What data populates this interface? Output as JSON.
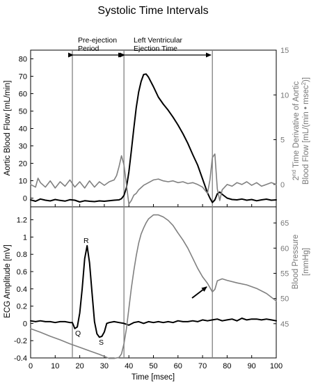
{
  "title": "Systolic Time Intervals",
  "chart_data": [
    {
      "type": "line",
      "panel": "top",
      "xlabel": "",
      "xlim": [
        0,
        100
      ],
      "ylabel": "Aortic Blood Flow [mL/min]",
      "ylim": [
        -5,
        85
      ],
      "yticks": [
        0,
        10,
        20,
        30,
        40,
        50,
        60,
        70,
        80
      ],
      "y2label_parts": [
        "2",
        "nd",
        " Time Derivative of Aortic",
        "Blood Flow [mL/(min • msec",
        "2",
        ")]"
      ],
      "y2lim": [
        -2.5,
        15
      ],
      "y2ticks": [
        0,
        5,
        10,
        15
      ],
      "color_primary": "#000000",
      "color_secondary": "#808080",
      "series": [
        {
          "axis": "left",
          "x": [
            0,
            2,
            4,
            6,
            8,
            10,
            12,
            14,
            16,
            18,
            20,
            22,
            24,
            26,
            28,
            30,
            32,
            34,
            36,
            37,
            38,
            39,
            40,
            41,
            42,
            43,
            44,
            45,
            46,
            47,
            48,
            50,
            52,
            54,
            56,
            58,
            60,
            62,
            64,
            66,
            68,
            70,
            72,
            73,
            74,
            75,
            76,
            77,
            78,
            80,
            82,
            84,
            86,
            88,
            90,
            92,
            94,
            96,
            98,
            100
          ],
          "y": [
            -1,
            -1.8,
            -0.5,
            -1.2,
            -1.6,
            -0.8,
            -1.3,
            -1.7,
            -0.9,
            -1.2,
            -2.2,
            -1.5,
            -1.8,
            -2,
            -1.6,
            -1.8,
            -1.5,
            -1.2,
            -1,
            -0.3,
            1.5,
            6,
            15,
            27,
            40,
            52,
            61,
            67,
            71,
            71.3,
            69.5,
            64,
            58,
            54,
            50.5,
            46.5,
            42,
            37,
            31.5,
            25,
            19,
            11,
            3,
            0,
            -2.5,
            -1,
            2.5,
            3.5,
            2.2,
            0,
            -0.8,
            -1,
            -0.5,
            -1.2,
            -0.8,
            -1.5,
            -1,
            -0.6,
            -1.2,
            -1
          ]
        },
        {
          "axis": "right",
          "x": [
            0,
            2,
            3,
            4,
            6,
            8,
            10,
            12,
            14,
            16,
            18,
            20,
            22,
            24,
            26,
            28,
            30,
            32,
            34,
            35,
            36,
            37,
            38,
            39,
            40,
            41,
            42,
            43,
            44,
            46,
            48,
            50,
            52,
            54,
            56,
            58,
            60,
            62,
            64,
            66,
            68,
            70,
            72,
            73,
            74,
            75,
            76,
            77,
            78,
            80,
            82,
            84,
            86,
            88,
            90,
            92,
            94,
            96,
            98,
            100
          ],
          "y": [
            0,
            -0.3,
            0.7,
            0.2,
            -0.3,
            0.4,
            -0.4,
            0.3,
            -0.2,
            0.5,
            -0.3,
            0.3,
            -0.4,
            0.4,
            -0.3,
            0.3,
            -0.1,
            0.3,
            0.5,
            1,
            2,
            3.2,
            2.2,
            0,
            -2.2,
            -1.8,
            -1.2,
            -1,
            -0.6,
            -0.1,
            0.2,
            0.5,
            0.6,
            0.4,
            0.3,
            0.4,
            0.2,
            0.3,
            0.1,
            0.2,
            0,
            -0.3,
            -1,
            0.5,
            3,
            3.4,
            -0.5,
            -1.8,
            -0.6,
            0,
            -0.2,
            0.2,
            0,
            0.3,
            -0.1,
            0.2,
            -0.2,
            0,
            0.2,
            0
          ]
        }
      ]
    },
    {
      "type": "line",
      "panel": "bottom",
      "xlabel": "Time [msec]",
      "xlim": [
        0,
        100
      ],
      "xticks": [
        0,
        10,
        20,
        30,
        40,
        50,
        60,
        70,
        80,
        90,
        100
      ],
      "ylabel": "ECG Amplitude [mV]",
      "ylim": [
        -0.4,
        1.35
      ],
      "yticks": [
        -0.4,
        -0.2,
        0,
        0.2,
        0.4,
        0.6,
        0.8,
        1,
        1.2
      ],
      "y2label_parts": [
        "Blood Pressure",
        "[mmHg]"
      ],
      "y2lim": [
        38.2,
        68.2
      ],
      "y2ticks": [
        45,
        50,
        55,
        60,
        65
      ],
      "series": [
        {
          "axis": "left",
          "x": [
            0,
            2,
            4,
            6,
            8,
            10,
            12,
            14,
            16,
            17,
            18,
            19,
            20,
            21,
            22,
            23,
            24,
            25,
            26,
            27,
            28,
            29,
            30,
            31,
            32,
            34,
            36,
            38,
            40,
            42,
            44,
            46,
            48,
            50,
            52,
            54,
            56,
            58,
            60,
            62,
            64,
            66,
            68,
            70,
            72,
            74,
            76,
            78,
            80,
            82,
            84,
            86,
            88,
            90,
            92,
            94,
            96,
            98,
            100
          ],
          "y": [
            0.03,
            0.02,
            0.03,
            0.02,
            0.02,
            0.01,
            0.02,
            0.02,
            0.01,
            0.01,
            -0.06,
            -0.04,
            0.12,
            0.4,
            0.75,
            0.9,
            0.7,
            0.35,
            0.02,
            -0.12,
            -0.16,
            -0.15,
            -0.1,
            0,
            0.01,
            0.02,
            0.01,
            0,
            -0.02,
            0.01,
            0.02,
            0,
            0.02,
            0.01,
            0.02,
            0.01,
            0.02,
            0.01,
            0.03,
            0.02,
            0.02,
            0.03,
            0.02,
            0.04,
            0.03,
            0.04,
            0.05,
            0.03,
            0.04,
            0.05,
            0.03,
            0.06,
            0.04,
            0.05,
            0.05,
            0.04,
            0.05,
            0.04,
            0.03
          ]
        },
        {
          "axis": "right",
          "x": [
            0,
            4,
            8,
            12,
            16,
            20,
            24,
            28,
            32,
            34,
            36,
            37,
            38,
            39,
            40,
            41,
            42,
            43,
            44,
            45,
            46,
            47,
            48,
            50,
            52,
            54,
            56,
            58,
            60,
            62,
            64,
            66,
            68,
            70,
            72,
            74,
            75,
            76,
            78,
            80,
            84,
            88,
            92,
            96,
            100
          ],
          "y": [
            44,
            43.3,
            42.5,
            41.8,
            41,
            40.3,
            39.6,
            38.9,
            38.1,
            38.1,
            38.3,
            39,
            41,
            44,
            48,
            52,
            55.5,
            58.5,
            61,
            62.8,
            64,
            65,
            65.8,
            66.6,
            66.6,
            66.2,
            65.5,
            64.5,
            63,
            61.6,
            60,
            58,
            56,
            54.3,
            53,
            51.3,
            51.8,
            53.5,
            53.9,
            53.6,
            53.1,
            52.7,
            52,
            51,
            49.5
          ]
        }
      ]
    }
  ],
  "annotations": {
    "pre_ejection_line1": "Pre-ejection",
    "pre_ejection_line2": "Period",
    "lvet_line1": "Left Ventricular",
    "lvet_line2": "Ejection Time",
    "peak_q": "Q",
    "peak_r": "R",
    "peak_s": "S",
    "marker_times": [
      17,
      38,
      74
    ]
  }
}
